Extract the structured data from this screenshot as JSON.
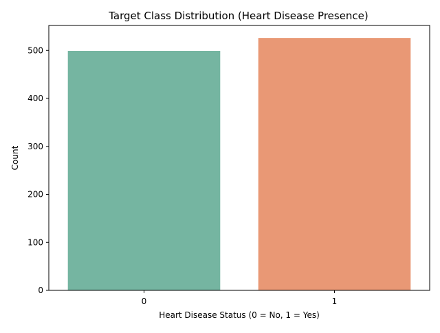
{
  "chart_data": {
    "type": "bar",
    "title": "Target Class Distribution (Heart Disease Presence)",
    "xlabel": "Heart Disease Status (0 = No, 1 = Yes)",
    "ylabel": "Count",
    "categories": [
      "0",
      "1"
    ],
    "values": [
      499,
      526
    ],
    "colors": [
      "#75B5A1",
      "#E99875"
    ],
    "ylim": [
      0,
      552
    ],
    "yticks": [
      0,
      100,
      200,
      300,
      400,
      500
    ],
    "grid": false,
    "legend": "none"
  }
}
